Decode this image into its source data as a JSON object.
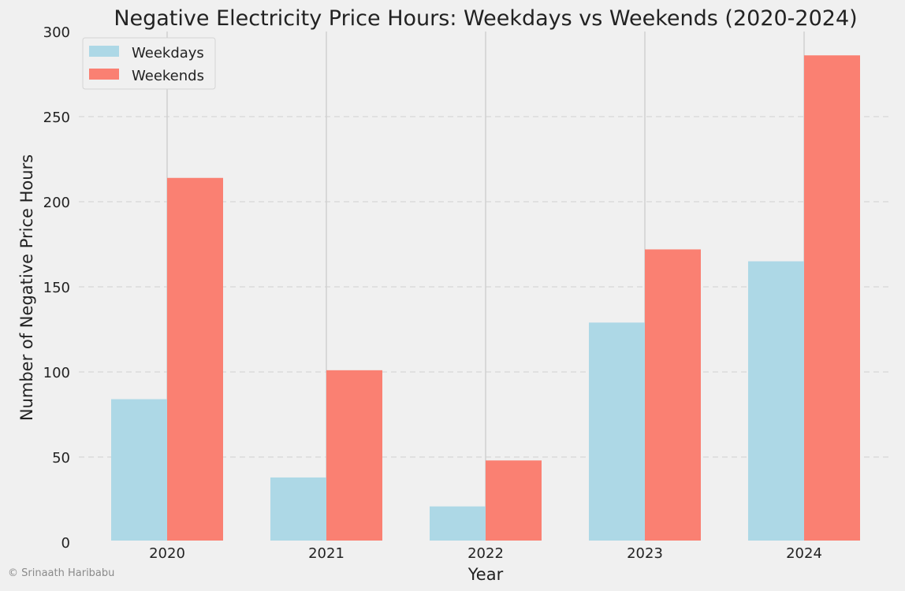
{
  "chart_data": {
    "type": "bar",
    "title": "Negative Electricity Price Hours: Weekdays vs Weekends (2020-2024)",
    "xlabel": "Year",
    "ylabel": "Number of Negative Price Hours",
    "categories": [
      "2020",
      "2021",
      "2022",
      "2023",
      "2024"
    ],
    "series": [
      {
        "name": "Weekdays",
        "color": "#add8e6",
        "values": [
          84,
          38,
          21,
          129,
          165
        ]
      },
      {
        "name": "Weekends",
        "color": "#fa8072",
        "values": [
          214,
          101,
          48,
          172,
          286
        ]
      }
    ],
    "ylim": [
      0,
      300
    ],
    "yticks": [
      "0",
      "50",
      "100",
      "150",
      "200",
      "250",
      "300"
    ],
    "grid": "y-dashed, x-solid",
    "legend_position": "top-left"
  },
  "footer": {
    "copyright": "© Srinaath Haribabu"
  }
}
